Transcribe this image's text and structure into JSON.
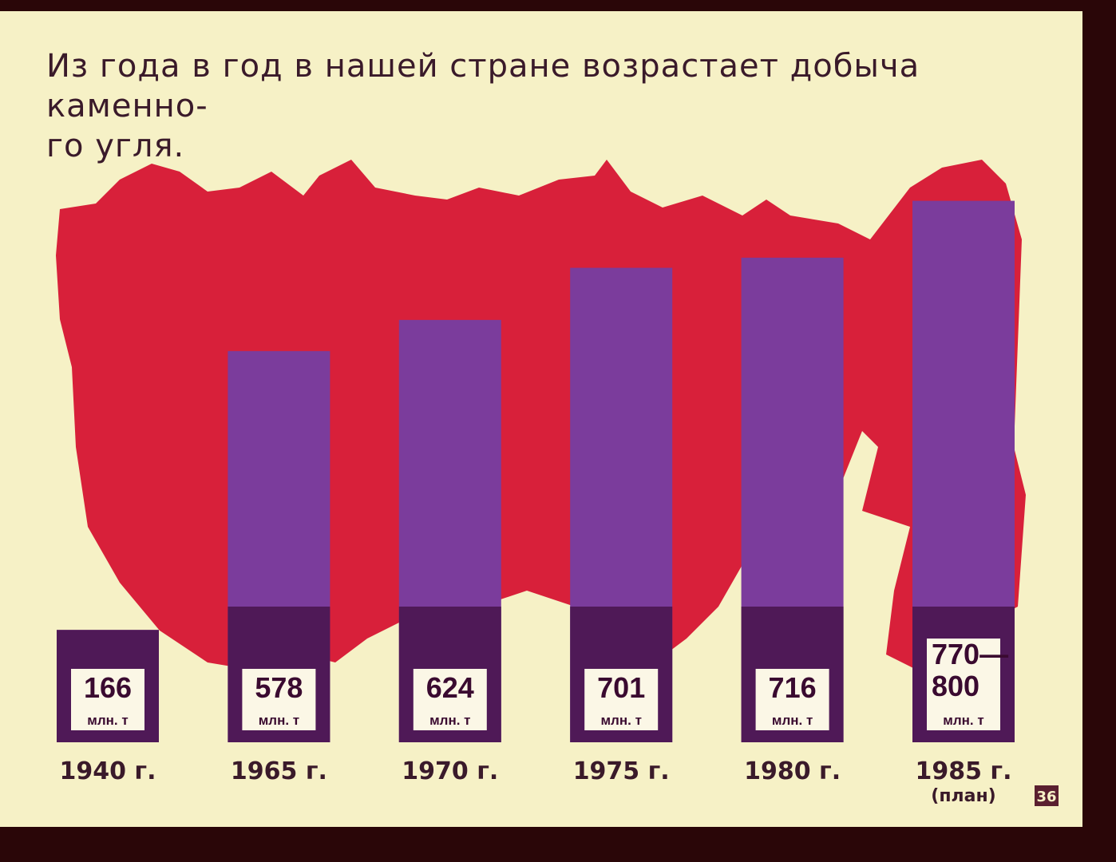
{
  "chart_data": {
    "type": "bar",
    "title": "Из года в год в нашей стране возрастает добыча каменно-\nго угля.",
    "categories": [
      "1940 г.",
      "1965 г.",
      "1970 г.",
      "1975 г.",
      "1980 г.",
      "1985 г."
    ],
    "category_notes": [
      null,
      null,
      null,
      null,
      null,
      "(план)"
    ],
    "values": [
      166,
      578,
      624,
      701,
      716,
      800
    ],
    "value_labels": [
      "166",
      "578",
      "624",
      "701",
      "716",
      "770—\n800"
    ],
    "unit": "млн. т",
    "color": "#7b3c9c",
    "slide_number": "36"
  }
}
